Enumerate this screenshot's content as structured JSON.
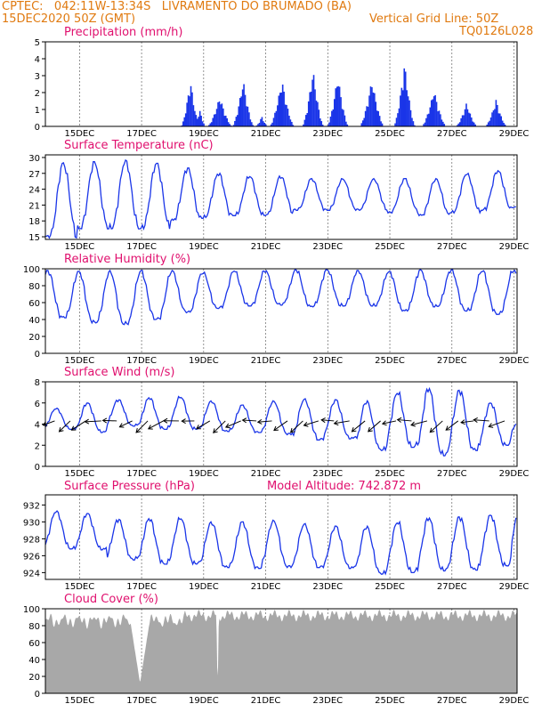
{
  "header": {
    "line1": "CPTEC:   042:11W-13:34S   LIVRAMENTO DO BRUMADO (BA)",
    "line2": "15DEC2020 50Z (GMT)",
    "grid_note": "Vertical Grid Line: 50Z",
    "code": "TQ0126L028"
  },
  "x_ticks": [
    "15DEC",
    "17DEC",
    "19DEC",
    "21DEC",
    "23DEC",
    "25DEC",
    "27DEC",
    "29DEC"
  ],
  "colors": {
    "header": "#e07a10",
    "title": "#e0106e",
    "series": "#1a35e8",
    "bars": "#1a35e8",
    "cloud": "#a8a8a8"
  },
  "chart_data": [
    {
      "type": "bar",
      "title": "Precipitation (mm/h)",
      "yticks": [
        0,
        1,
        2,
        3,
        4,
        5
      ],
      "ylim": [
        0,
        5
      ],
      "events": [
        {
          "day": 4.65,
          "peak": 2.8,
          "width": 0.3
        },
        {
          "day": 4.95,
          "peak": 1.0,
          "width": 0.2
        },
        {
          "day": 5.6,
          "peak": 1.8,
          "width": 0.4
        },
        {
          "day": 6.35,
          "peak": 2.8,
          "width": 0.35
        },
        {
          "day": 6.95,
          "peak": 0.6,
          "width": 0.2
        },
        {
          "day": 7.6,
          "peak": 2.8,
          "width": 0.4
        },
        {
          "day": 8.6,
          "peak": 3.4,
          "width": 0.35
        },
        {
          "day": 9.4,
          "peak": 3.1,
          "width": 0.35
        },
        {
          "day": 10.5,
          "peak": 2.8,
          "width": 0.4
        },
        {
          "day": 11.55,
          "peak": 3.8,
          "width": 0.35
        },
        {
          "day": 12.5,
          "peak": 2.2,
          "width": 0.4
        },
        {
          "day": 13.55,
          "peak": 1.4,
          "width": 0.35
        },
        {
          "day": 14.5,
          "peak": 1.6,
          "width": 0.35
        },
        {
          "day": 15.55,
          "peak": 2.5,
          "width": 0.4
        }
      ]
    },
    {
      "type": "line",
      "title": "Surface Temperature (nC)",
      "yticks": [
        15,
        18,
        21,
        24,
        27,
        30
      ],
      "ylim": [
        14.5,
        30.5
      ],
      "daily_max": [
        29,
        29.2,
        29.5,
        28.9,
        28,
        27,
        26.5,
        26.5,
        26,
        26,
        26,
        26,
        26,
        27,
        27.5,
        25
      ],
      "daily_min": [
        14.8,
        16.5,
        16.5,
        16.5,
        18,
        18.5,
        19,
        19,
        20,
        20,
        20,
        19.5,
        19,
        19.5,
        20,
        20.5
      ],
      "phase": 0.58
    },
    {
      "type": "line",
      "title": "Relative Humidity (%)",
      "yticks": [
        0,
        20,
        40,
        60,
        80,
        100
      ],
      "ylim": [
        0,
        100
      ],
      "daily_max": [
        98,
        97,
        98,
        98,
        98,
        96,
        98,
        98,
        99,
        99,
        98,
        97,
        99,
        99,
        98,
        98
      ],
      "daily_min": [
        42,
        36,
        34,
        40,
        48,
        53,
        56,
        57,
        55,
        56,
        56,
        50,
        55,
        50,
        46,
        58
      ],
      "phase": 0.08
    },
    {
      "type": "line",
      "title": "Surface Wind (m/s)",
      "yticks": [
        0,
        2,
        4,
        6,
        8
      ],
      "ylim": [
        0,
        8
      ],
      "daily_max": [
        5.5,
        6.0,
        6.3,
        6.5,
        6.6,
        6.2,
        5.8,
        6.2,
        6.4,
        6.3,
        6.2,
        7.0,
        7.4,
        7.2,
        6.0,
        4.5
      ],
      "daily_min": [
        3.5,
        3.2,
        3.8,
        3.5,
        3.5,
        3.3,
        3.2,
        3.0,
        2.5,
        2.6,
        1.5,
        1.8,
        1.0,
        1.5,
        2.0,
        3.2
      ],
      "phase": 0.35
    },
    {
      "type": "line",
      "title": "Surface Pressure (hPa)",
      "annotation": "Model Altitude: 742.872 m",
      "yticks": [
        924,
        926,
        928,
        930,
        932
      ],
      "ylim": [
        923.2,
        933.2
      ],
      "daily_max": [
        931.3,
        931.0,
        930.3,
        930.4,
        930.5,
        930.0,
        930.0,
        930.2,
        929.8,
        929.5,
        929.5,
        930.0,
        930.5,
        930.6,
        930.8,
        932.6
      ],
      "daily_min": [
        926.8,
        926.7,
        925.5,
        925.0,
        925.0,
        924.6,
        924.5,
        924.6,
        924.6,
        924.5,
        923.8,
        924.0,
        924.2,
        924.3,
        924.8,
        927.0
      ],
      "phase": 0.35
    },
    {
      "type": "area",
      "title": "Cloud Cover (%)",
      "yticks": [
        0,
        20,
        40,
        60,
        80,
        100
      ],
      "ylim": [
        0,
        100
      ],
      "typical": 94,
      "dips": [
        {
          "day": 3.05,
          "value": 12,
          "width": 0.35
        },
        {
          "day": 5.55,
          "value": 2,
          "width": 0.04
        }
      ]
    }
  ]
}
